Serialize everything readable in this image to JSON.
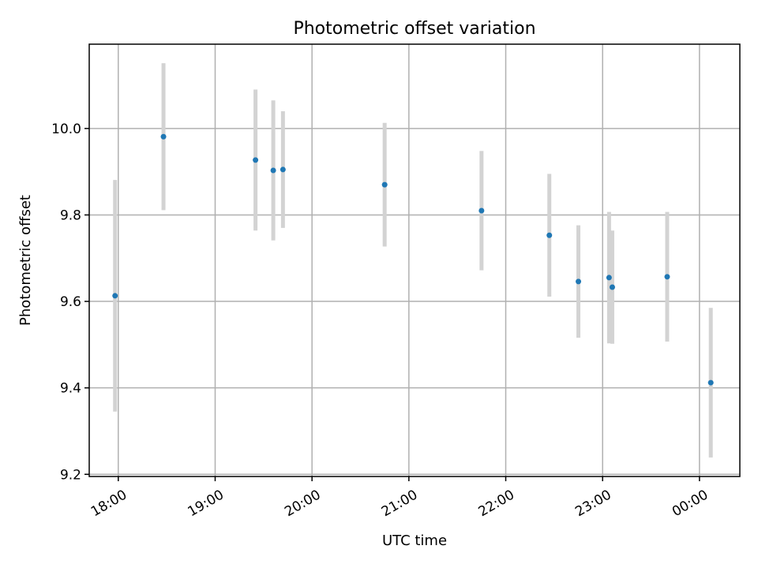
{
  "chart_data": {
    "type": "scatter",
    "title": "Photometric offset variation",
    "xlabel": "UTC time",
    "ylabel": "Photometric offset",
    "xlim": [
      "17:42",
      "00:25"
    ],
    "ylim": [
      9.195,
      10.195
    ],
    "x_ticks": [
      "18:00",
      "19:00",
      "20:00",
      "21:00",
      "22:00",
      "23:00",
      "00:00"
    ],
    "y_ticks": [
      9.2,
      9.4,
      9.6,
      9.8,
      10.0
    ],
    "y_tick_labels": [
      "9.2",
      "9.4",
      "9.6",
      "9.8",
      "10.0"
    ],
    "grid": true,
    "point_color": "#1f77b4",
    "errorbar_color": "#d3d3d3",
    "points": [
      {
        "time": "17:58",
        "y": 9.613,
        "yerr": 0.268
      },
      {
        "time": "18:28",
        "y": 9.981,
        "yerr": 0.17
      },
      {
        "time": "19:25",
        "y": 9.927,
        "yerr": 0.163
      },
      {
        "time": "19:36",
        "y": 9.903,
        "yerr": 0.162
      },
      {
        "time": "19:42",
        "y": 9.905,
        "yerr": 0.135
      },
      {
        "time": "20:45",
        "y": 9.87,
        "yerr": 0.143
      },
      {
        "time": "21:45",
        "y": 9.81,
        "yerr": 0.138
      },
      {
        "time": "22:27",
        "y": 9.753,
        "yerr": 0.142
      },
      {
        "time": "22:45",
        "y": 9.646,
        "yerr": 0.13
      },
      {
        "time": "23:04",
        "y": 9.655,
        "yerr": 0.152
      },
      {
        "time": "23:06",
        "y": 9.633,
        "yerr": 0.131
      },
      {
        "time": "23:40",
        "y": 9.657,
        "yerr": 0.15
      },
      {
        "time": "00:07",
        "y": 9.412,
        "yerr": 0.173
      }
    ]
  }
}
